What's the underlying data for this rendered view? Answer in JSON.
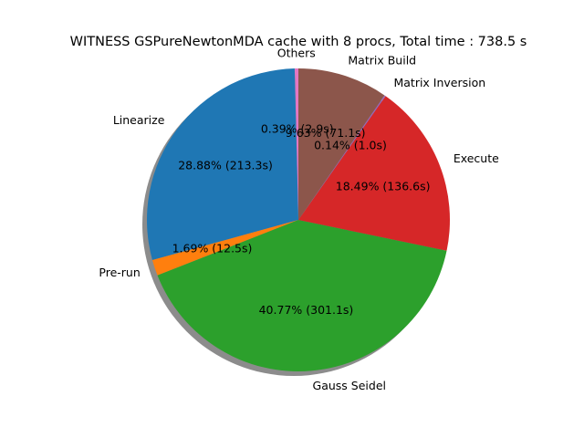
{
  "chart_data": {
    "type": "pie",
    "title": "WITNESS GSPureNewtonMDA cache with 8 procs, Total time : 738.5 s",
    "start_angle_deg": 90,
    "direction": "counterclockwise",
    "shadow": true,
    "slices": [
      {
        "label": "Others",
        "value": 2.9,
        "pct_text": "0.39%  (2.9s)",
        "color": "#e377c2"
      },
      {
        "label": "Linearize",
        "value": 213.3,
        "pct_text": "28.88%  (213.3s)",
        "color": "#1f77b4"
      },
      {
        "label": "Pre-run",
        "value": 12.5,
        "pct_text": "1.69%  (12.5s)",
        "color": "#ff7f0e"
      },
      {
        "label": "Gauss Seidel",
        "value": 301.1,
        "pct_text": "40.77%  (301.1s)",
        "color": "#2ca02c"
      },
      {
        "label": "Execute",
        "value": 136.6,
        "pct_text": "18.49%  (136.6s)",
        "color": "#d62728"
      },
      {
        "label": "Matrix Inversion",
        "value": 1.0,
        "pct_text": "0.14%  (1.0s)",
        "color": "#9467bd"
      },
      {
        "label": "Matrix Build",
        "value": 71.1,
        "pct_text": "9.63%  (71.1s)",
        "color": "#8c564b"
      }
    ]
  }
}
